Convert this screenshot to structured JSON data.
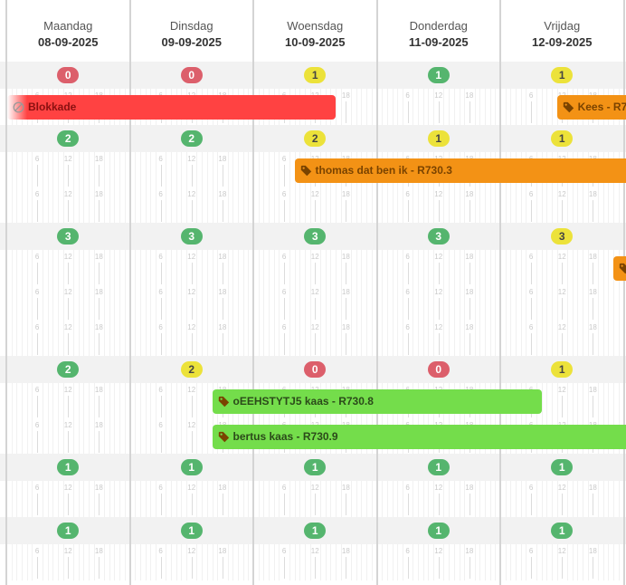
{
  "days": [
    {
      "name": "Maandag",
      "date": "08-09-2025"
    },
    {
      "name": "Dinsdag",
      "date": "09-09-2025"
    },
    {
      "name": "Woensdag",
      "date": "10-09-2025"
    },
    {
      "name": "Donderdag",
      "date": "11-09-2025"
    },
    {
      "name": "Vrijdag",
      "date": "12-09-2025"
    }
  ],
  "tick_labels": [
    "6",
    "12",
    "18"
  ],
  "colors": {
    "red": "#dc5f6b",
    "green": "#55b56e",
    "yellow": "#ece23a",
    "block": "#ff4242",
    "orange": "#f39215",
    "lime": "#74dd4b"
  },
  "rows": [
    {
      "lanes": 1,
      "badges": [
        {
          "v": "0",
          "s": "red"
        },
        {
          "v": "0",
          "s": "red"
        },
        {
          "v": "1",
          "s": "yellow"
        },
        {
          "v": "1",
          "s": "green"
        },
        {
          "v": "1",
          "s": "yellow"
        }
      ]
    },
    {
      "lanes": 2,
      "badges": [
        {
          "v": "2",
          "s": "green"
        },
        {
          "v": "2",
          "s": "green"
        },
        {
          "v": "2",
          "s": "yellow"
        },
        {
          "v": "1",
          "s": "yellow"
        },
        {
          "v": "1",
          "s": "yellow"
        }
      ]
    },
    {
      "lanes": 3,
      "badges": [
        {
          "v": "3",
          "s": "green"
        },
        {
          "v": "3",
          "s": "green"
        },
        {
          "v": "3",
          "s": "green"
        },
        {
          "v": "3",
          "s": "green"
        },
        {
          "v": "3",
          "s": "yellow"
        }
      ]
    },
    {
      "lanes": 2,
      "badges": [
        {
          "v": "2",
          "s": "green"
        },
        {
          "v": "2",
          "s": "yellow"
        },
        {
          "v": "0",
          "s": "red"
        },
        {
          "v": "0",
          "s": "red"
        },
        {
          "v": "1",
          "s": "yellow"
        }
      ]
    },
    {
      "lanes": 1,
      "badges": [
        {
          "v": "1",
          "s": "green"
        },
        {
          "v": "1",
          "s": "green"
        },
        {
          "v": "1",
          "s": "green"
        },
        {
          "v": "1",
          "s": "green"
        },
        {
          "v": "1",
          "s": "green"
        }
      ]
    },
    {
      "lanes": 1,
      "badges": [
        {
          "v": "1",
          "s": "green"
        },
        {
          "v": "1",
          "s": "green"
        },
        {
          "v": "1",
          "s": "green"
        },
        {
          "v": "1",
          "s": "green"
        },
        {
          "v": "1",
          "s": "green"
        }
      ]
    }
  ],
  "events": [
    {
      "label": "Blokkade",
      "type": "block",
      "icon": "ban-icon",
      "row": 0,
      "lane": 0,
      "start_day": 0,
      "start_hour": 0,
      "end_day": 2,
      "end_hour": 16,
      "color": "block",
      "continues_before": true
    },
    {
      "label": "Kees - R7",
      "type": "booking",
      "icon": "tag-icon",
      "row": 0,
      "lane": 0,
      "start_day": 4,
      "start_hour": 11,
      "end_day": 5,
      "end_hour": 6,
      "color": "orange"
    },
    {
      "label": "thomas dat ben ik - R730.3",
      "type": "booking",
      "icon": "tag-icon",
      "row": 1,
      "lane": 0,
      "start_day": 2,
      "start_hour": 8,
      "end_day": 5,
      "end_hour": 6,
      "color": "orange"
    },
    {
      "label": "",
      "type": "booking",
      "icon": "tag-icon",
      "row": 2,
      "lane": 0,
      "start_day": 4,
      "start_hour": 22,
      "end_day": 5,
      "end_hour": 6,
      "color": "orange"
    },
    {
      "label": "oEEHSTYTJ5 kaas - R730.8",
      "type": "booking",
      "icon": "tag-icon",
      "row": 3,
      "lane": 0,
      "start_day": 1,
      "start_hour": 16,
      "end_day": 4,
      "end_hour": 8,
      "color": "lime"
    },
    {
      "label": "bertus kaas - R730.9",
      "type": "booking",
      "icon": "tag-icon",
      "row": 3,
      "lane": 1,
      "start_day": 1,
      "start_hour": 16,
      "end_day": 5,
      "end_hour": 6,
      "color": "lime"
    }
  ]
}
